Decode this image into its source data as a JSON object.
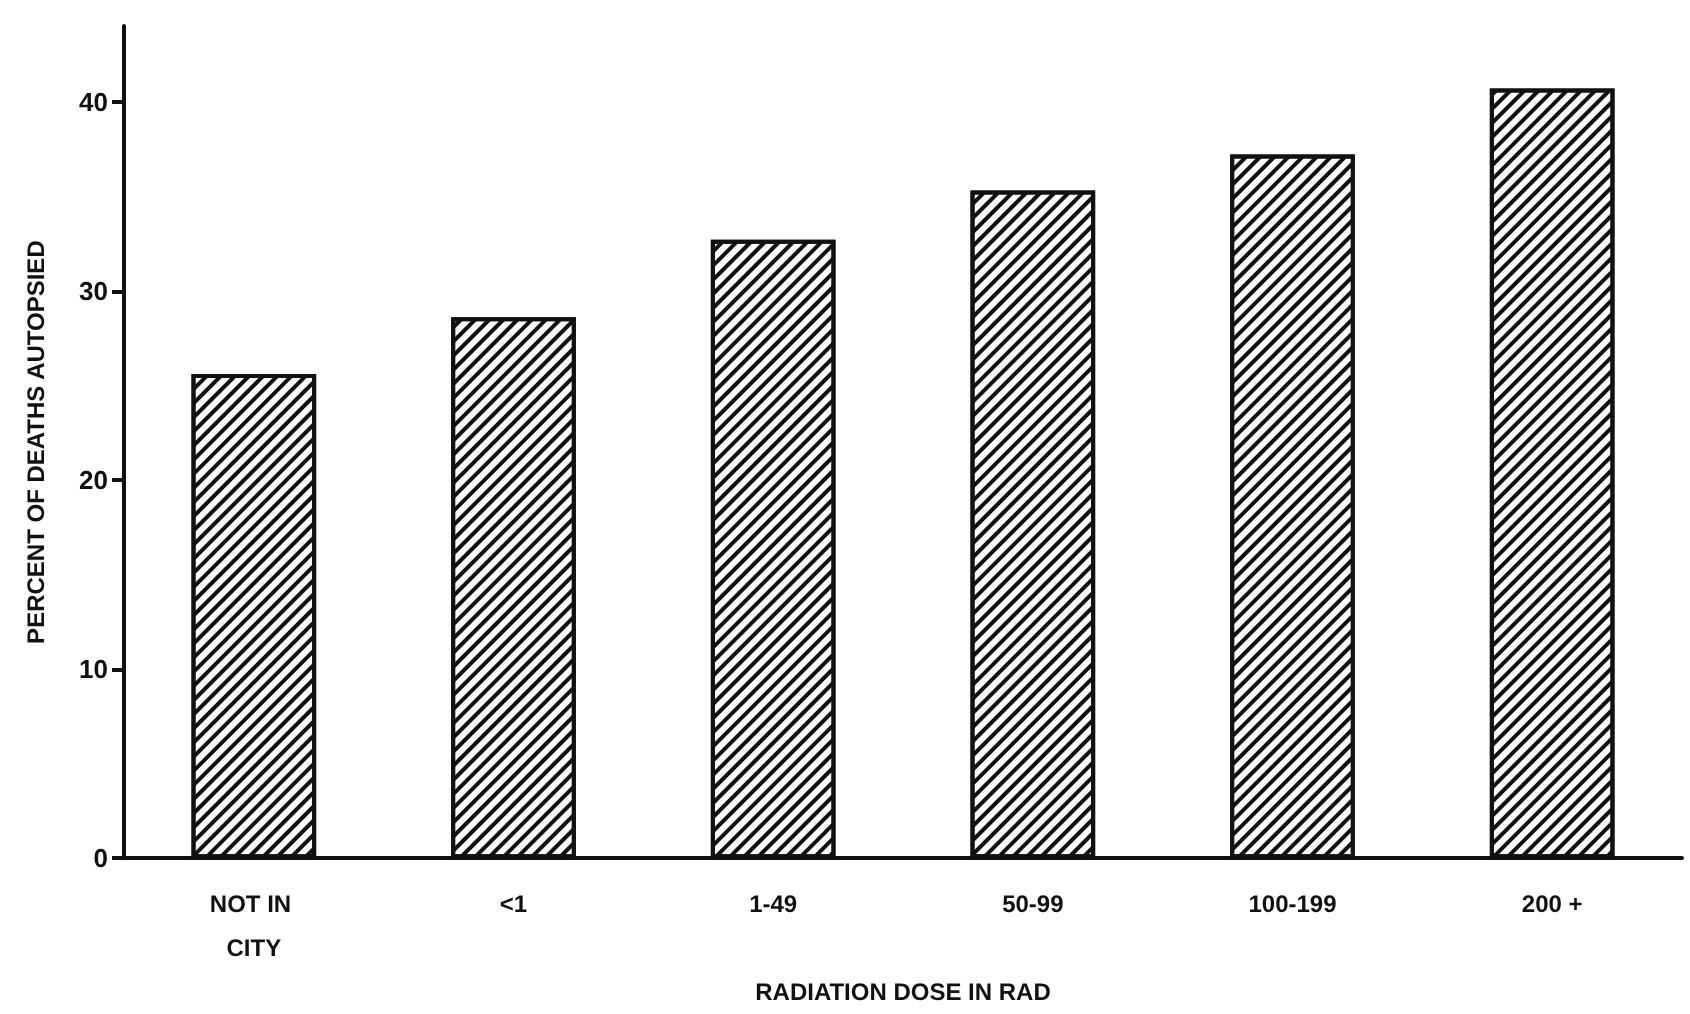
{
  "chart_data": {
    "type": "bar",
    "xlabel": "RADIATION DOSE IN RAD",
    "ylabel": "PERCENT OF DEATHS AUTOPSIED",
    "categories": [
      "NOT IN CITY",
      "<1",
      "1-49",
      "50-99",
      "100-199",
      "200 +"
    ],
    "values": [
      25.6,
      28.6,
      32.7,
      35.3,
      37.2,
      40.7
    ],
    "color": "#111111",
    "ylim": [
      0,
      44
    ],
    "yticks": [
      0,
      10,
      20,
      30,
      40
    ],
    "grid": false
  }
}
